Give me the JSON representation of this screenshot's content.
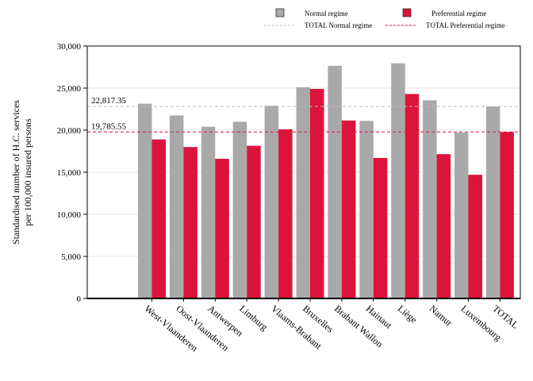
{
  "chart_data": {
    "type": "bar",
    "title": "",
    "xlabel": "",
    "ylabel": [
      "Standardised number of H.C. services",
      "per 100,000 insured persons"
    ],
    "ylim": [
      0,
      30000
    ],
    "yticks": [
      0,
      5000,
      10000,
      15000,
      20000,
      25000,
      30000
    ],
    "ytick_labels": [
      "0",
      "5,000",
      "10,000",
      "15,000",
      "20,000",
      "25,000",
      "30,000"
    ],
    "grid": true,
    "legend_position": "top",
    "categories": [
      "West-Vlaanderen",
      "Oost-Vlaanderen",
      "Antwerpen",
      "Limburg",
      "Vlaams-Brabant",
      "Bruxelles",
      "Brabant Wallon",
      "Hainaut",
      "Liège",
      "Namur",
      "Luxembourg",
      "TOTAL"
    ],
    "series": [
      {
        "name": "Normal regime",
        "color": "#a9a9a9",
        "values": [
          23150,
          21750,
          20400,
          21000,
          22900,
          25100,
          27650,
          21100,
          27950,
          23550,
          19700,
          22817.35
        ]
      },
      {
        "name": "Preferential regime",
        "color": "#dc143c",
        "values": [
          18900,
          18000,
          16600,
          18150,
          20100,
          24900,
          21150,
          16700,
          24300,
          17150,
          14700,
          19785.55
        ]
      }
    ],
    "reference_lines": [
      {
        "name": "TOTAL Normal regime",
        "value": 22817.35,
        "label": "22,817.35",
        "color": "#bbbbbb",
        "style": "dashed"
      },
      {
        "name": "TOTAL Preferential regime",
        "value": 19785.55,
        "label": "19,785.55",
        "color": "#dc143c",
        "style": "dashed"
      }
    ]
  }
}
